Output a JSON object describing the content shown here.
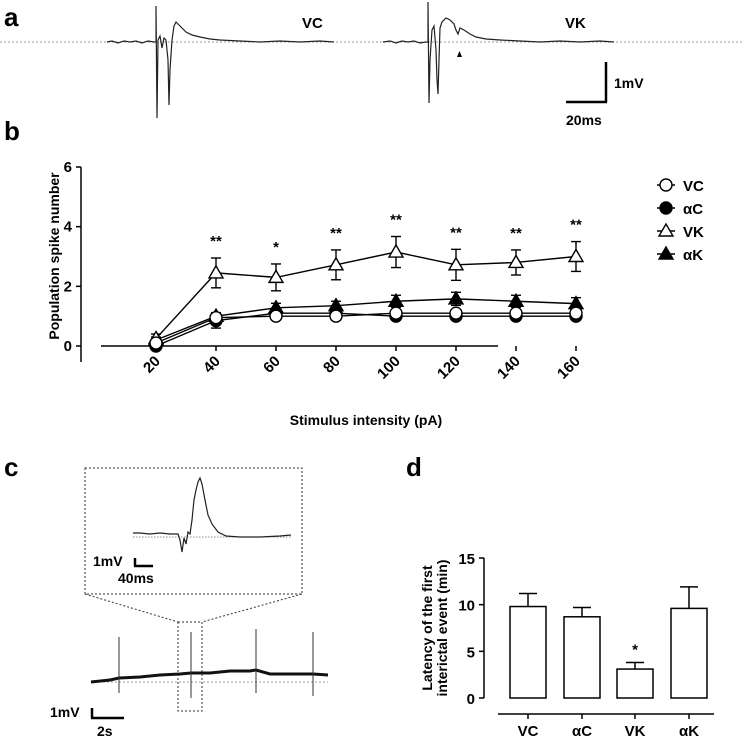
{
  "panels": {
    "a": {
      "label": "a",
      "traces": [
        {
          "name": "VC"
        },
        {
          "name": "VK"
        }
      ],
      "scale_bar": {
        "voltage": "1mV",
        "time": "20ms"
      }
    },
    "b": {
      "label": "b"
    },
    "c": {
      "label": "c",
      "inset_scale": {
        "voltage": "1mV",
        "time": "40ms"
      },
      "main_scale": {
        "voltage": "1mV",
        "time": "2s"
      }
    },
    "d": {
      "label": "d"
    }
  },
  "chart_data": [
    {
      "id": "b",
      "type": "line",
      "title": "",
      "xlabel": "Stimulus intensity (pA)",
      "ylabel": "Population spike number",
      "x": [
        20,
        40,
        60,
        80,
        100,
        120,
        140,
        160
      ],
      "x_tick_labels": [
        "20",
        "40",
        "60",
        "80",
        "100",
        "120",
        "140",
        "160"
      ],
      "ylim": [
        0,
        6
      ],
      "y_ticks": [
        0,
        2,
        4,
        6
      ],
      "legend_position": "right",
      "series": [
        {
          "name": "VC",
          "marker": "open-circle",
          "values": [
            0.1,
            0.95,
            1.0,
            1.0,
            1.1,
            1.1,
            1.1,
            1.1
          ],
          "errors": [
            0.05,
            0.1,
            0.05,
            0.05,
            0.05,
            0.05,
            0.05,
            0.05
          ]
        },
        {
          "name": "αC",
          "marker": "filled-circle",
          "values": [
            0.0,
            0.85,
            1.1,
            1.1,
            1.0,
            1.0,
            1.0,
            1.0
          ],
          "errors": [
            0.05,
            0.25,
            0.1,
            0.1,
            0.05,
            0.05,
            0.05,
            0.05
          ]
        },
        {
          "name": "VK",
          "marker": "open-triangle",
          "values": [
            0.25,
            2.45,
            2.3,
            2.72,
            3.15,
            2.72,
            2.8,
            3.0
          ],
          "errors": [
            0.15,
            0.5,
            0.45,
            0.5,
            0.52,
            0.52,
            0.42,
            0.5
          ]
        },
        {
          "name": "αK",
          "marker": "filled-triangle",
          "values": [
            0.2,
            1.0,
            1.28,
            1.35,
            1.5,
            1.58,
            1.5,
            1.42
          ],
          "errors": [
            0.1,
            0.12,
            0.15,
            0.15,
            0.2,
            0.22,
            0.2,
            0.2
          ]
        }
      ],
      "annotations": [
        {
          "x": 40,
          "text": "**"
        },
        {
          "x": 60,
          "text": "*"
        },
        {
          "x": 80,
          "text": "**"
        },
        {
          "x": 100,
          "text": "**"
        },
        {
          "x": 120,
          "text": "**"
        },
        {
          "x": 140,
          "text": "**"
        },
        {
          "x": 160,
          "text": "**"
        }
      ]
    },
    {
      "id": "d",
      "type": "bar",
      "title": "",
      "xlabel": "",
      "ylabel": "Latency of the first interictal event (min)",
      "ylabel_lines": [
        "Latency of the first",
        "interictal event (min)"
      ],
      "categories": [
        "VC",
        "αC",
        "VK",
        "αK"
      ],
      "values": [
        9.8,
        8.7,
        3.1,
        9.6
      ],
      "errors": [
        1.4,
        1.0,
        0.7,
        2.3
      ],
      "ylim": [
        0,
        15
      ],
      "y_ticks": [
        0,
        5,
        10,
        15
      ],
      "annotations": [
        {
          "category": "VK",
          "text": "*"
        }
      ]
    }
  ]
}
